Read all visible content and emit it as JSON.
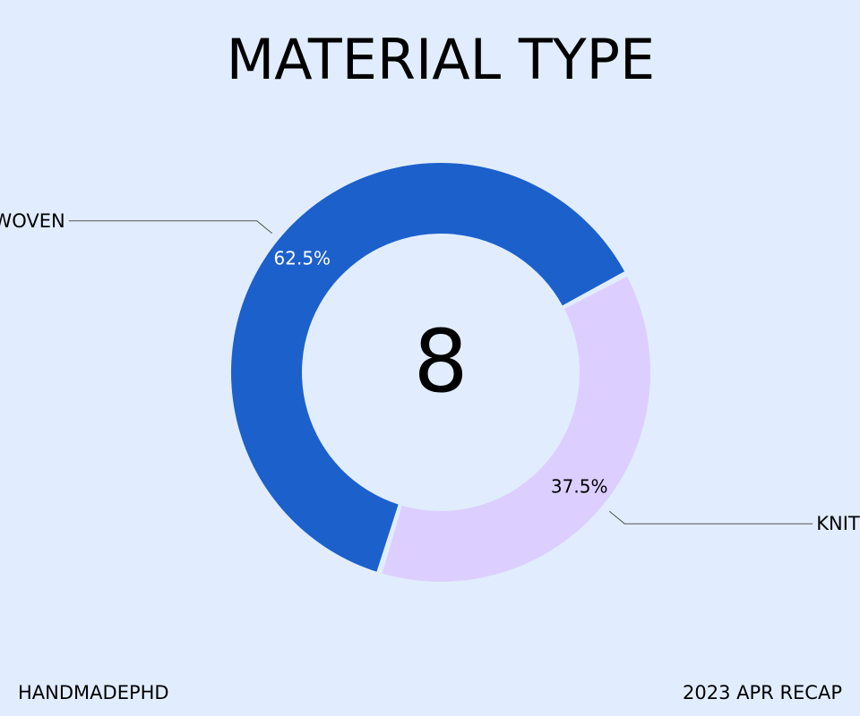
{
  "chart_data": {
    "type": "pie",
    "title": "MATERIAL TYPE",
    "center_value": "8",
    "slices": [
      {
        "label": "WOVEN",
        "value": 62.5,
        "value_label": "62.5%",
        "color": "#1c60cc",
        "text_color": "#ffffff"
      },
      {
        "label": "KNIT",
        "value": 37.5,
        "value_label": "37.5%",
        "color": "#dccfff",
        "text_color": "#000000"
      }
    ],
    "legend": "none"
  },
  "footer": {
    "left": "HANDMADEPHD",
    "right": "2023 APR RECAP"
  },
  "colors": {
    "background": "#e1edfe",
    "leader_line": "#555555"
  }
}
